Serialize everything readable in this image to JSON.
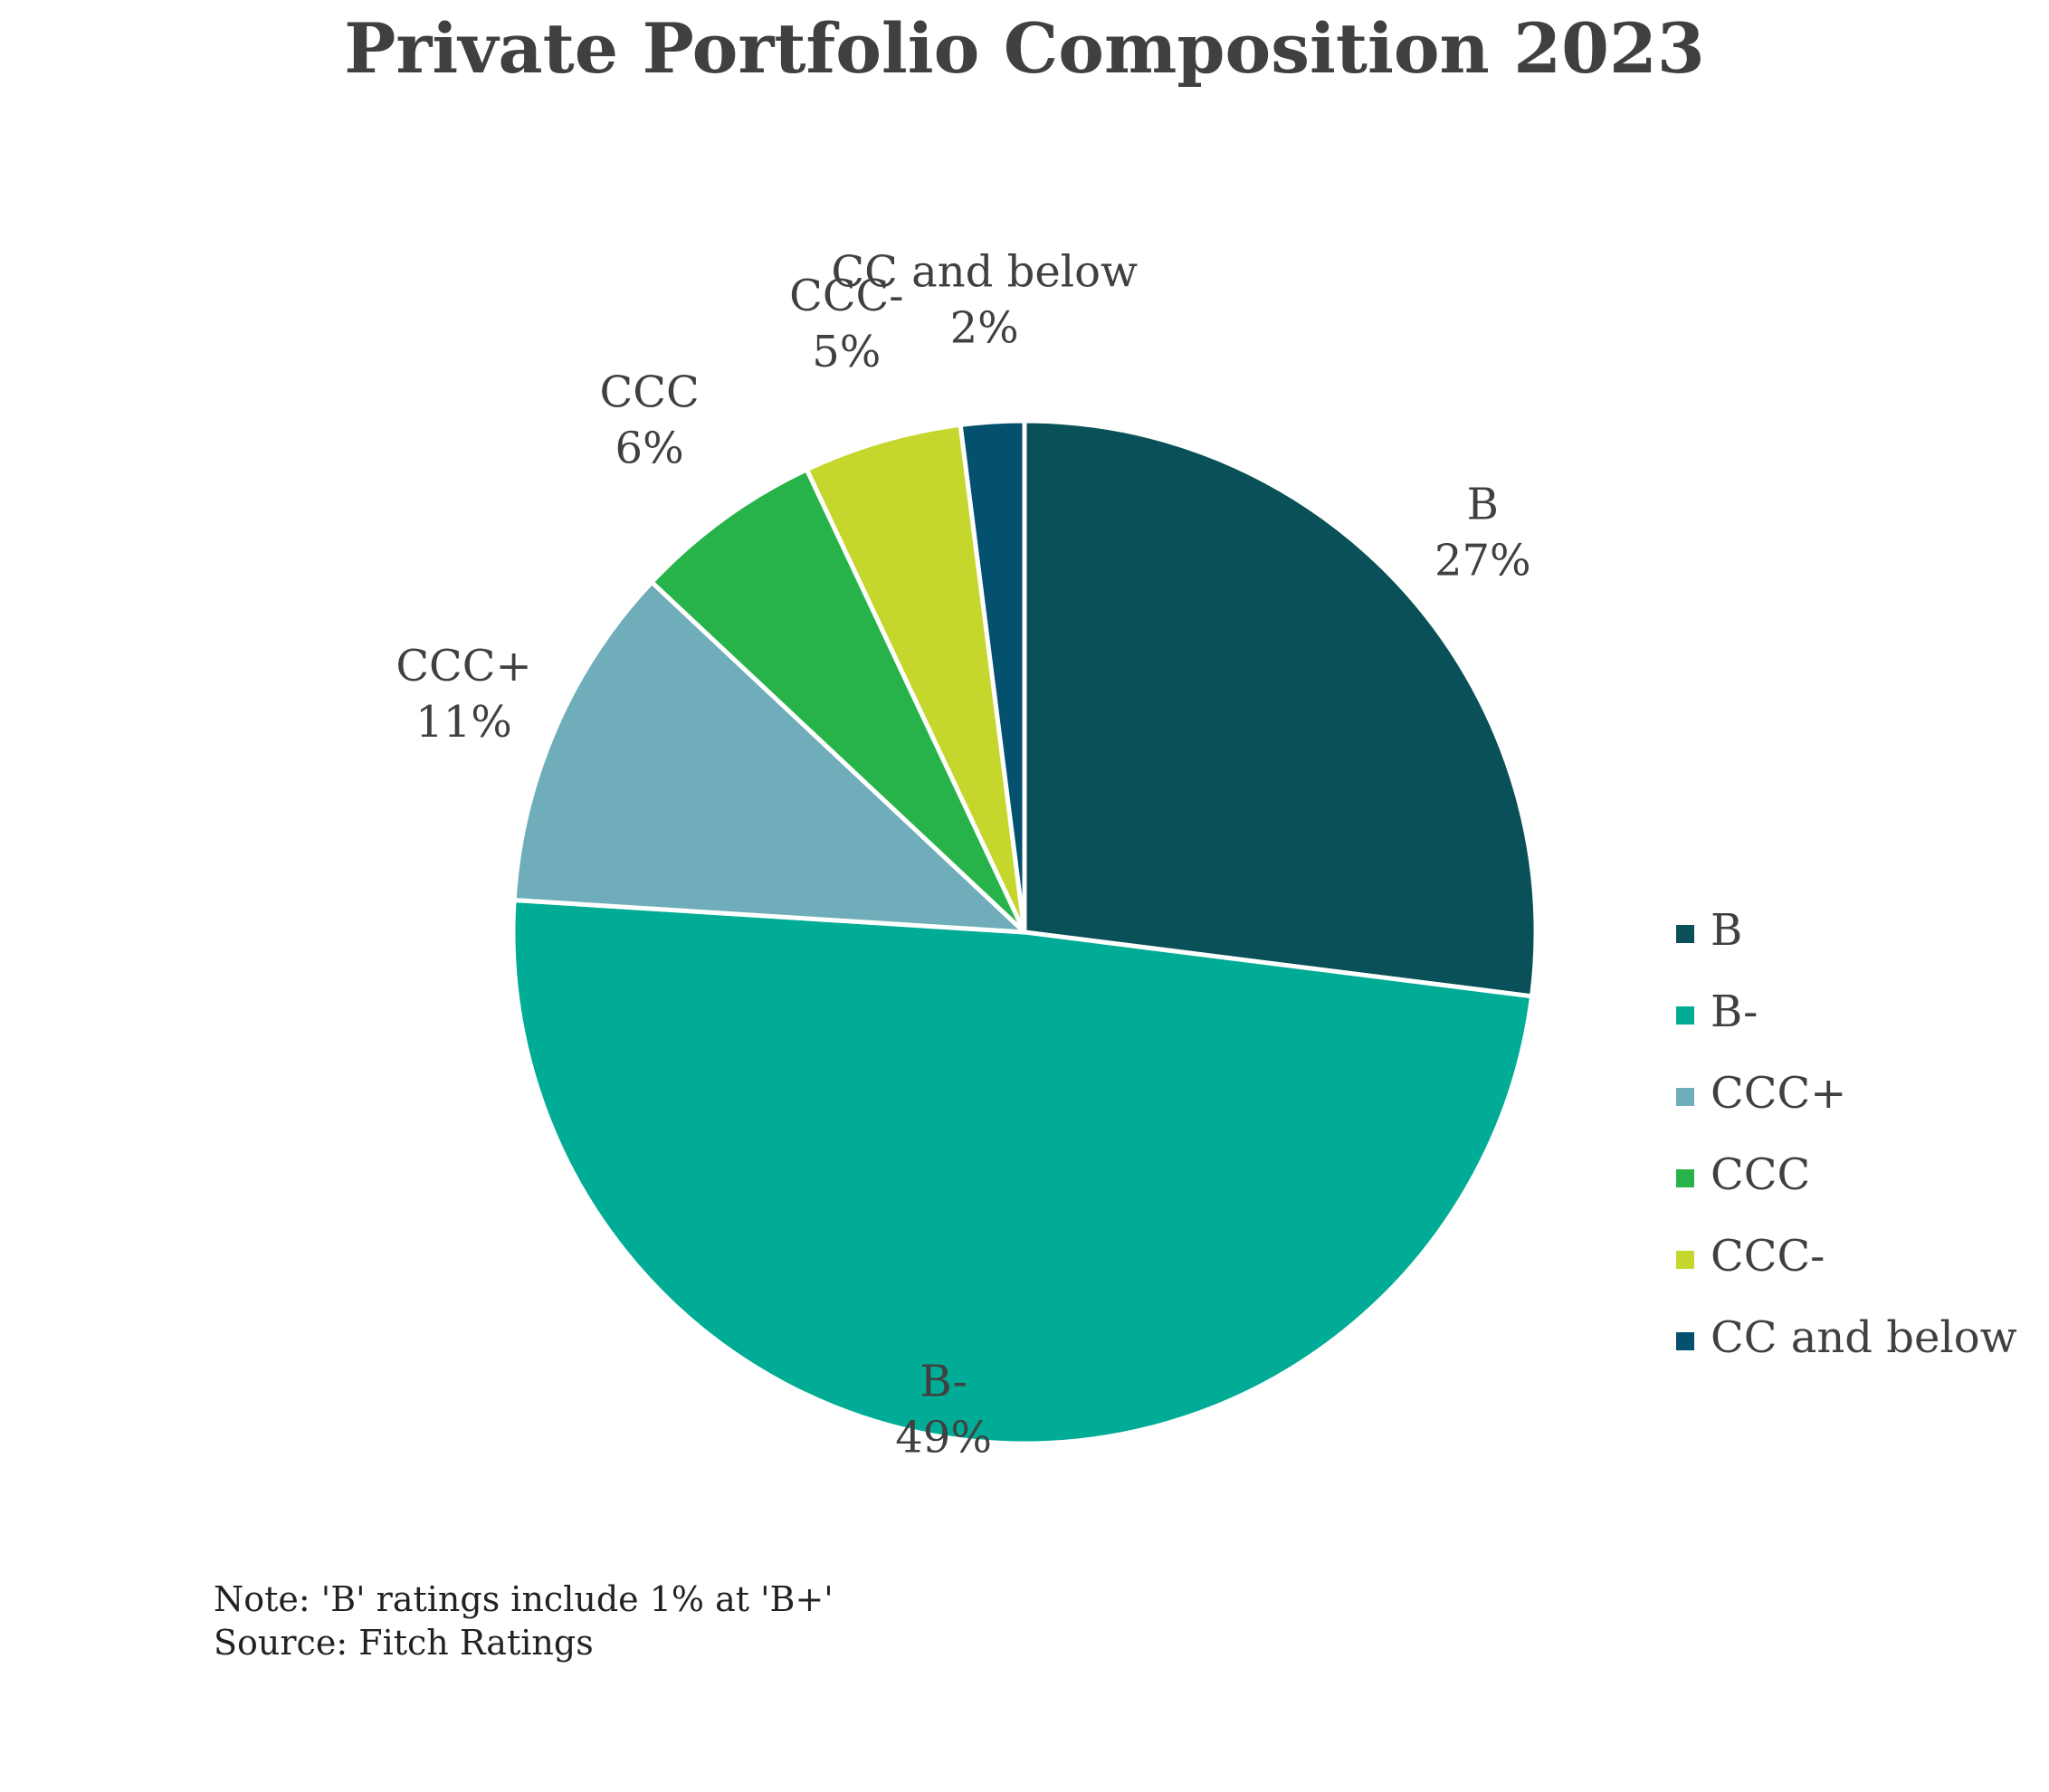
{
  "chart_data": {
    "type": "pie",
    "title": "Private Portfolio Composition 2023",
    "slices": [
      {
        "label": "B",
        "value": 27,
        "value_label": "27%",
        "color": "#0A5058"
      },
      {
        "label": "B-",
        "value": 49,
        "value_label": "49%",
        "color": "#00AC96"
      },
      {
        "label": "CCC+",
        "value": 11,
        "value_label": "11%",
        "color": "#70ADBB"
      },
      {
        "label": "CCC",
        "value": 6,
        "value_label": "6%",
        "color": "#27B34A"
      },
      {
        "label": "CCC-",
        "value": 5,
        "value_label": "5%",
        "color": "#C5D72D"
      },
      {
        "label": "CC and below",
        "value": 2,
        "value_label": "2%",
        "color": "#03506F"
      }
    ],
    "start_angle_deg": 0,
    "direction": "clockwise",
    "legend_position": "right",
    "notes": [
      "Note: 'B' ratings include 1% at 'B+'",
      "Source: Fitch Ratings"
    ]
  }
}
